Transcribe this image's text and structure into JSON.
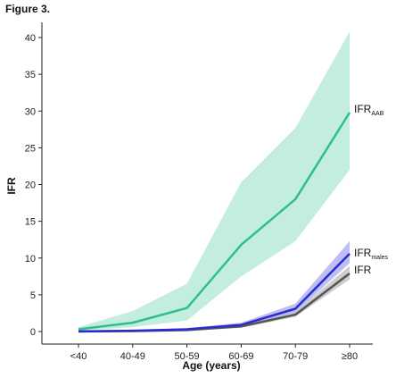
{
  "chart_data": {
    "type": "line",
    "title": "Figure 3.",
    "xlabel": "Age (years)",
    "ylabel": "IFR",
    "categories": [
      "<40",
      "40-49",
      "50-59",
      "60-69",
      "70-79",
      "≥80"
    ],
    "ylim": [
      0,
      42
    ],
    "yticks": [
      0,
      5,
      10,
      15,
      20,
      25,
      30,
      35,
      40
    ],
    "grid": false,
    "legend": "inline-right",
    "series": [
      {
        "name": "IFR",
        "label_main": "IFR",
        "label_sub": "AAB",
        "color": "#2fbf8a",
        "band_color": "#b9ead8",
        "values": [
          0.3,
          1.2,
          3.2,
          11.8,
          18.0,
          29.8
        ],
        "lower": [
          0.1,
          0.6,
          1.5,
          7.5,
          12.3,
          22.0
        ],
        "upper": [
          0.6,
          2.8,
          6.5,
          20.3,
          27.7,
          40.8
        ]
      },
      {
        "name": "IFR",
        "label_main": "IFR",
        "label_sub": "males",
        "color": "#2b2bd6",
        "band_color": "#b3b3ee",
        "values": [
          0.02,
          0.1,
          0.3,
          0.9,
          3.1,
          10.6
        ],
        "lower": [
          0.0,
          0.05,
          0.2,
          0.7,
          2.6,
          9.3
        ],
        "upper": [
          0.05,
          0.15,
          0.45,
          1.2,
          3.8,
          12.3
        ]
      },
      {
        "name": "IFR",
        "label_main": "IFR",
        "label_sub": "",
        "color": "#555555",
        "band_color": "#c4c4c4",
        "values": [
          0.01,
          0.06,
          0.2,
          0.7,
          2.3,
          7.9
        ],
        "lower": [
          0.0,
          0.03,
          0.1,
          0.5,
          2.0,
          7.1
        ],
        "upper": [
          0.03,
          0.1,
          0.3,
          0.9,
          2.7,
          8.9
        ]
      }
    ]
  }
}
